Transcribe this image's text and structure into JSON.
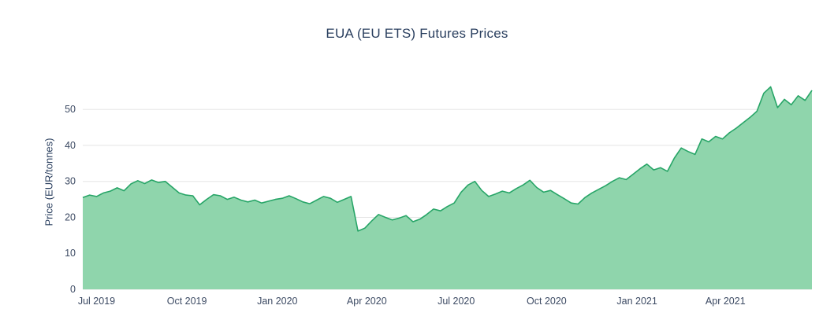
{
  "chart_data": {
    "type": "area",
    "title": "EUA (EU ETS) Futures Prices",
    "xlabel": "",
    "ylabel": "Price (EUR/tonnes)",
    "ylim": [
      0,
      59
    ],
    "yticks": [
      0,
      10,
      20,
      30,
      40,
      50
    ],
    "xticks": [
      {
        "label": "Jul 2019",
        "date": "2019-07-01"
      },
      {
        "label": "Oct 2019",
        "date": "2019-10-01"
      },
      {
        "label": "Jan 2020",
        "date": "2020-01-01"
      },
      {
        "label": "Apr 2020",
        "date": "2020-04-01"
      },
      {
        "label": "Jul 2020",
        "date": "2020-07-01"
      },
      {
        "label": "Oct 2020",
        "date": "2020-10-01"
      },
      {
        "label": "Jan 2021",
        "date": "2021-01-01"
      },
      {
        "label": "Apr 2021",
        "date": "2021-04-01"
      }
    ],
    "grid": true,
    "legend": "none",
    "grid_color": "#e5e5e5",
    "line_color": "#27a567",
    "fill_color": "#8fd5ac",
    "background_color": "#ffffff",
    "x": [
      "2019-06-17",
      "2019-06-24",
      "2019-07-01",
      "2019-07-08",
      "2019-07-15",
      "2019-07-22",
      "2019-07-29",
      "2019-08-05",
      "2019-08-12",
      "2019-08-19",
      "2019-08-26",
      "2019-09-02",
      "2019-09-09",
      "2019-09-16",
      "2019-09-23",
      "2019-09-30",
      "2019-10-07",
      "2019-10-14",
      "2019-10-21",
      "2019-10-28",
      "2019-11-04",
      "2019-11-11",
      "2019-11-18",
      "2019-11-25",
      "2019-12-02",
      "2019-12-09",
      "2019-12-16",
      "2019-12-23",
      "2019-12-30",
      "2020-01-06",
      "2020-01-13",
      "2020-01-20",
      "2020-01-27",
      "2020-02-03",
      "2020-02-10",
      "2020-02-17",
      "2020-02-24",
      "2020-03-02",
      "2020-03-09",
      "2020-03-16",
      "2020-03-23",
      "2020-03-30",
      "2020-04-06",
      "2020-04-13",
      "2020-04-20",
      "2020-04-27",
      "2020-05-04",
      "2020-05-11",
      "2020-05-18",
      "2020-05-25",
      "2020-06-01",
      "2020-06-08",
      "2020-06-15",
      "2020-06-22",
      "2020-06-29",
      "2020-07-06",
      "2020-07-13",
      "2020-07-20",
      "2020-07-27",
      "2020-08-03",
      "2020-08-10",
      "2020-08-17",
      "2020-08-24",
      "2020-08-31",
      "2020-09-07",
      "2020-09-14",
      "2020-09-21",
      "2020-09-28",
      "2020-10-05",
      "2020-10-12",
      "2020-10-19",
      "2020-10-26",
      "2020-11-02",
      "2020-11-09",
      "2020-11-16",
      "2020-11-23",
      "2020-11-30",
      "2020-12-07",
      "2020-12-14",
      "2020-12-21",
      "2020-12-28",
      "2021-01-04",
      "2021-01-11",
      "2021-01-18",
      "2021-01-25",
      "2021-02-01",
      "2021-02-08",
      "2021-02-15",
      "2021-02-22",
      "2021-03-01",
      "2021-03-08",
      "2021-03-15",
      "2021-03-22",
      "2021-03-29",
      "2021-04-05",
      "2021-04-12",
      "2021-04-19",
      "2021-04-26",
      "2021-05-03",
      "2021-05-10",
      "2021-05-17",
      "2021-05-24",
      "2021-05-31",
      "2021-06-07",
      "2021-06-14",
      "2021-06-21",
      "2021-06-28"
    ],
    "y": [
      25.5,
      26.2,
      25.8,
      26.8,
      27.3,
      28.2,
      27.4,
      29.3,
      30.2,
      29.4,
      30.4,
      29.7,
      30.0,
      28.4,
      26.8,
      26.2,
      26.0,
      23.5,
      25.0,
      26.3,
      26.0,
      25.0,
      25.6,
      24.8,
      24.3,
      24.8,
      24.0,
      24.5,
      25.0,
      25.3,
      26.0,
      25.2,
      24.3,
      23.8,
      24.8,
      25.8,
      25.3,
      24.2,
      25.0,
      25.8,
      16.2,
      17.0,
      19.0,
      20.8,
      20.0,
      19.3,
      19.8,
      20.5,
      18.8,
      19.5,
      20.8,
      22.3,
      21.8,
      23.0,
      24.0,
      27.0,
      29.0,
      30.0,
      27.5,
      25.8,
      26.5,
      27.3,
      26.8,
      28.0,
      29.0,
      30.3,
      28.3,
      27.0,
      27.5,
      26.3,
      25.2,
      24.0,
      23.7,
      25.5,
      26.8,
      27.8,
      28.8,
      30.0,
      31.0,
      30.5,
      32.0,
      33.5,
      34.8,
      33.2,
      33.8,
      32.8,
      36.5,
      39.3,
      38.3,
      37.5,
      41.8,
      41.0,
      42.5,
      41.8,
      43.5,
      44.8,
      46.3,
      47.8,
      49.5,
      54.5,
      56.3,
      50.5,
      52.8,
      51.3,
      53.8,
      52.5,
      55.3
    ]
  }
}
